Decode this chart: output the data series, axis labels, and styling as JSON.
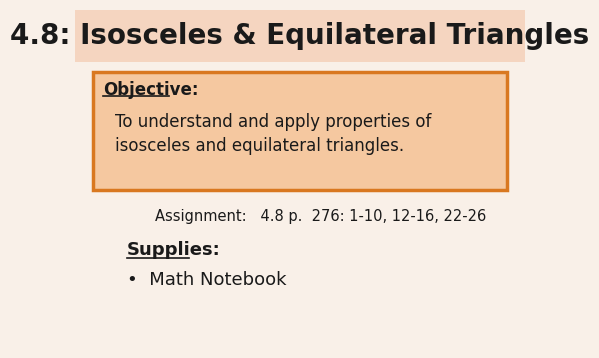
{
  "title": "4.8: Isosceles & Equilateral Triangles",
  "title_bg": "#f5d5c0",
  "title_fontsize": 20,
  "title_color": "#1a1a1a",
  "objective_label": "Objective:",
  "objective_text1": "To understand and apply properties of",
  "objective_text2": "isosceles and equilateral triangles.",
  "objective_box_bg": "#f5c8a0",
  "objective_box_border": "#d97820",
  "assignment_text": "Assignment:   4.8 p.  276: 1-10, 12-16, 22-26",
  "supplies_label": "Supplies:",
  "supplies_item": "Math Notebook",
  "body_bg": "#f9f0e8",
  "text_color": "#1a1a1a"
}
